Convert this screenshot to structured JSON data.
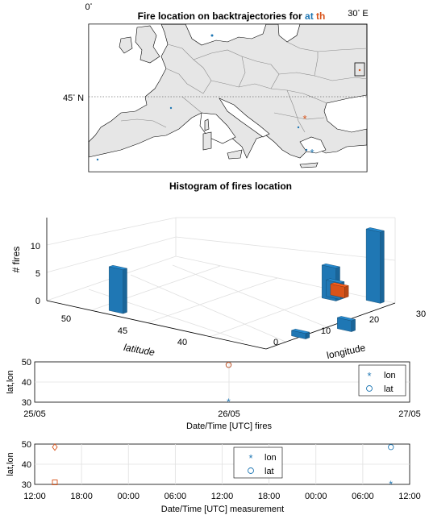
{
  "map": {
    "title_main": "Fire location on backtrajectories for ",
    "title_at": "at",
    "title_th": "th",
    "lon_ticks": [
      {
        "deg": "0",
        "suffix": "",
        "value": 0
      },
      {
        "deg": "30",
        "suffix": "E",
        "value": 30
      }
    ],
    "lat_ticks": [
      {
        "deg": "45",
        "suffix": "N",
        "value": 45
      }
    ],
    "markers": [
      {
        "name": "at",
        "lon": 23.4,
        "lat": 40.0,
        "color": "#0072BD",
        "shape": "star"
      },
      {
        "name": "th",
        "lon": 22.9,
        "lat": 40.9,
        "color": "#D95319",
        "shape": "star"
      }
    ],
    "colors": {
      "at": "#1f77b4",
      "th": "#d95319"
    }
  },
  "chart_data": [
    {
      "type": "bar3d",
      "title": "Histogram of fires location",
      "zlabel": "# fires",
      "xlabel": "latitude",
      "ylabel": "longitude",
      "z_ticks": [
        "0",
        "5",
        "10"
      ],
      "lat_ticks": [
        "40",
        "45",
        "50"
      ],
      "lon_ticks": [
        "0",
        "10",
        "20",
        "30"
      ],
      "bars": [
        {
          "lat": 48,
          "lon": 2,
          "value": 8,
          "color": "#1f77b4"
        },
        {
          "lat": 41,
          "lon": 26,
          "value": 6,
          "color": "#1f77b4"
        },
        {
          "lat": 41,
          "lon": 27,
          "value": 3,
          "color": "#1f77b4"
        },
        {
          "lat": 41,
          "lon": 28,
          "value": 2,
          "color": "#d95319"
        },
        {
          "lat": 39,
          "lon": 29,
          "value": 13,
          "color": "#1f77b4"
        },
        {
          "lat": 38,
          "lon": 8,
          "value": 1,
          "color": "#1f77b4"
        },
        {
          "lat": 37,
          "lon": 15,
          "value": 2,
          "color": "#1f77b4"
        }
      ]
    },
    {
      "type": "scatter",
      "xlabel": "Date/Time [UTC] fires",
      "ylabel": "lat,lon",
      "x_ticks": [
        "25/05",
        "26/05",
        "27/05"
      ],
      "y_ticks": [
        "30",
        "40",
        "50"
      ],
      "ylim": [
        30,
        50
      ],
      "legend": [
        {
          "label": "lon",
          "marker": "*"
        },
        {
          "label": "lat",
          "marker": "o"
        }
      ],
      "points": [
        {
          "x": "26/05",
          "y": 48.5,
          "marker": "o",
          "color": "#1f77b4"
        },
        {
          "x": "26/05",
          "y": 48.5,
          "marker": "o",
          "color": "#d95319"
        },
        {
          "x": "26/05",
          "y": 30.5,
          "marker": "*",
          "color": "#1f77b4"
        }
      ]
    },
    {
      "type": "scatter",
      "xlabel": "Date/Time [UTC] measurement",
      "ylabel": "lat,lon",
      "x_ticks": [
        "12:00",
        "18:00",
        "00:00",
        "06:00",
        "12:00",
        "18:00",
        "00:00",
        "06:00",
        "12:00"
      ],
      "y_ticks": [
        "30",
        "40",
        "50"
      ],
      "ylim": [
        30,
        50
      ],
      "legend": [
        {
          "label": "lon",
          "marker": "*"
        },
        {
          "label": "lat",
          "marker": "o"
        }
      ],
      "points": [
        {
          "x": 0.0,
          "y": 48.5,
          "marker": "diamond",
          "color": "#d95319"
        },
        {
          "x": 0.0,
          "y": 31.0,
          "marker": "square",
          "color": "#d95319"
        },
        {
          "x": 7.6,
          "y": 48.5,
          "marker": "o",
          "color": "#1f77b4"
        },
        {
          "x": 7.6,
          "y": 30.5,
          "marker": "*",
          "color": "#1f77b4"
        }
      ]
    }
  ]
}
